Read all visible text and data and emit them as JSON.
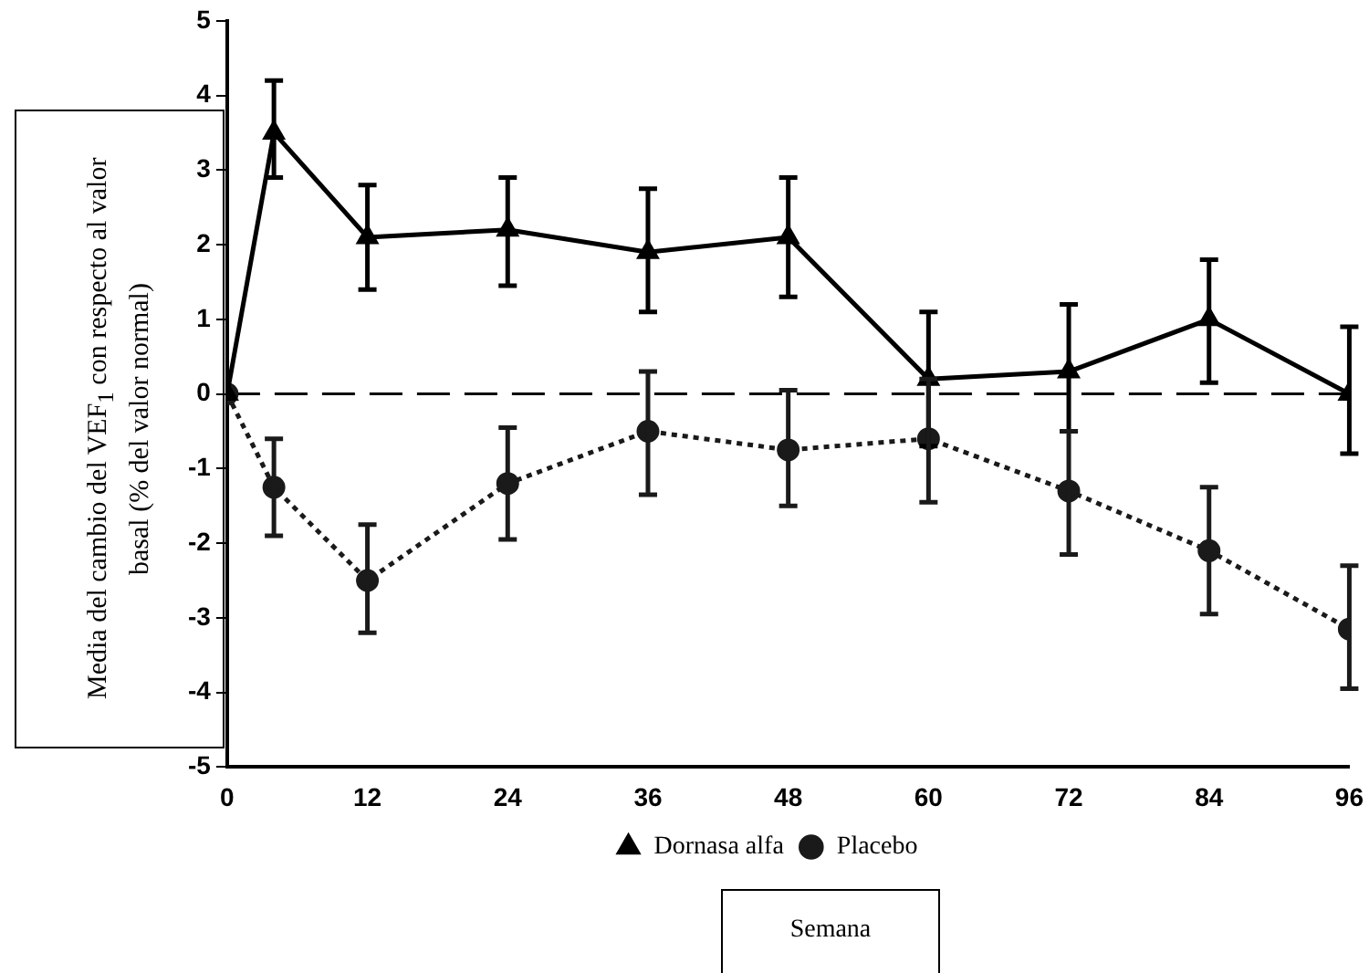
{
  "chart_data": {
    "type": "line",
    "xlabel": "Semana",
    "ylabel": "Media del cambio del VEF$_{1}$ con respecto al valor basal (% del valor normal)",
    "x": [
      0,
      4,
      12,
      24,
      36,
      48,
      60,
      72,
      84,
      96
    ],
    "xlim": [
      0,
      96
    ],
    "xticks": [
      0,
      12,
      24,
      36,
      48,
      60,
      72,
      84,
      96
    ],
    "ylim": [
      -5,
      5
    ],
    "yticks": [
      -5,
      -4,
      -3,
      -2,
      -1,
      0,
      1,
      2,
      3,
      4,
      5
    ],
    "grid": false,
    "legend": "bottom",
    "ref_lines": [
      {
        "axis": "y",
        "value": 0,
        "line_style": "dashed",
        "color": "#000000"
      }
    ],
    "series": [
      {
        "name": "Dornasa alfa",
        "color": "#000000",
        "marker": "triangle",
        "line_style": "solid",
        "values": [
          0,
          3.5,
          2.1,
          2.2,
          1.9,
          2.1,
          0.2,
          0.3,
          1.0,
          0
        ],
        "errors": [
          null,
          [
            2.9,
            4.2
          ],
          [
            1.4,
            2.8
          ],
          [
            1.45,
            2.9
          ],
          [
            1.1,
            2.75
          ],
          [
            1.3,
            2.9
          ],
          [
            -0.7,
            1.1
          ],
          [
            -0.5,
            1.2
          ],
          [
            0.15,
            1.8
          ],
          [
            -0.8,
            0.9
          ]
        ]
      },
      {
        "name": "Placebo",
        "color": "#1a1a1a",
        "marker": "circle",
        "line_style": "dotted",
        "values": [
          0,
          -1.25,
          -2.5,
          -1.2,
          -0.5,
          -0.75,
          -0.6,
          -1.3,
          -2.1,
          -3.15
        ],
        "errors": [
          null,
          [
            -1.9,
            -0.6
          ],
          [
            -3.2,
            -1.75
          ],
          [
            -1.95,
            -0.45
          ],
          [
            -1.35,
            0.3
          ],
          [
            -1.5,
            0.05
          ],
          [
            -1.45,
            0.2
          ],
          [
            -2.15,
            -0.5
          ],
          [
            -2.95,
            -1.25
          ],
          [
            -3.95,
            -2.3
          ]
        ]
      }
    ]
  }
}
